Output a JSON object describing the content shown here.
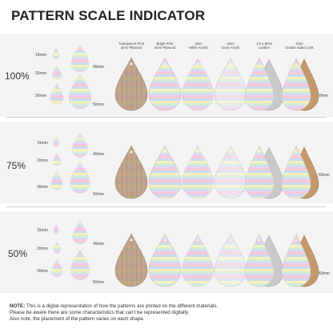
{
  "title": "PATTERN SCALE INDICATOR",
  "columns": [
    {
      "line1": "Transparent Print",
      "line2": "3mm Plywood"
    },
    {
      "line1": "Bright Print",
      "line2": "3mm Plywood"
    },
    {
      "line1": "3mm",
      "line2": "White Acrylic"
    },
    {
      "line1": "3mm",
      "line2": "Clear Acrylic"
    },
    {
      "line1": "1.6-1.8mm",
      "line2": "Leather"
    },
    {
      "line1": "2mm",
      "line2": "Double Sided Cork"
    }
  ],
  "rows": [
    {
      "percent": "100%",
      "sizes": [
        "15mm",
        "20mm",
        "30mm",
        "40mm",
        "50mm"
      ],
      "sample_size": "60mm"
    },
    {
      "percent": "75%",
      "sizes": [
        "15mm",
        "20mm",
        "30mm",
        "40mm",
        "50mm"
      ],
      "sample_size": "60mm"
    },
    {
      "percent": "50%",
      "sizes": [
        "15mm",
        "20mm",
        "30mm",
        "40mm",
        "50mm"
      ],
      "sample_size": "60mm"
    }
  ],
  "note": {
    "label": "NOTE:",
    "line1": "This is a digital representation of how the patterns are printed on the different materials.",
    "line2": "Please be aware there are some characteristics that can't be represented digitally.",
    "line3": "Also note, the placement of the pattern varies on each shape."
  },
  "colors": {
    "band": "#f3f3f3",
    "plywood": "#b8987a",
    "leather": "#c9c9c9",
    "cork": "#c39a6e",
    "stripes": [
      "#f7c8d8",
      "#c8ddf3",
      "#fbf1b8",
      "#cdeed9",
      "#e2d3f2"
    ]
  }
}
